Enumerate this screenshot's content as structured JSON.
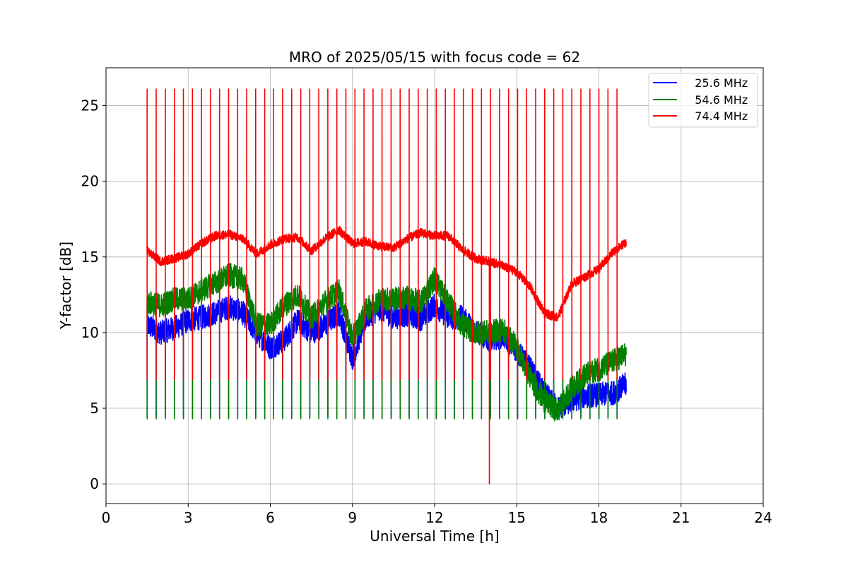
{
  "chart_data": {
    "type": "line",
    "title": "MRO of 2025/05/15 with focus code = 62",
    "xlabel": "Universal Time [h]",
    "ylabel": "Y-factor [dB]",
    "xlim": [
      0,
      24
    ],
    "ylim": [
      -1.3,
      27.5
    ],
    "xticks": [
      0,
      3,
      6,
      9,
      12,
      15,
      18,
      21,
      24
    ],
    "yticks": [
      0,
      5,
      10,
      15,
      20,
      25
    ],
    "grid": true,
    "legend_position": "top-right",
    "series": [
      {
        "name": "   25.6 MHz",
        "color": "#0000ff",
        "x": [
          1.5,
          2.0,
          2.5,
          3.0,
          3.5,
          4.0,
          4.5,
          5.0,
          5.5,
          6.0,
          6.5,
          7.0,
          7.5,
          8.0,
          8.5,
          9.0,
          9.5,
          10.0,
          10.5,
          11.0,
          11.5,
          12.0,
          12.5,
          13.0,
          13.5,
          14.0,
          14.5,
          15.0,
          15.5,
          16.0,
          16.5,
          17.0,
          17.5,
          18.0,
          18.5,
          19.0
        ],
        "baseline": [
          10.5,
          10.0,
          10.3,
          10.8,
          11.0,
          11.3,
          11.7,
          11.3,
          10.0,
          9.0,
          9.5,
          10.8,
          10.0,
          10.5,
          11.3,
          8.3,
          11.0,
          11.6,
          11.0,
          11.2,
          10.9,
          11.8,
          11.0,
          11.0,
          10.1,
          9.5,
          9.8,
          8.8,
          7.6,
          6.0,
          5.0,
          5.5,
          5.8,
          5.9,
          6.0,
          6.6
        ],
        "spike_period": 0.33,
        "spike_low": 4.4,
        "spike_high": 7.0
      },
      {
        "name": "   54.6 MHz",
        "color": "#008000",
        "x": [
          1.5,
          2.0,
          2.5,
          3.0,
          3.5,
          4.0,
          4.5,
          5.0,
          5.5,
          6.0,
          6.5,
          7.0,
          7.5,
          8.0,
          8.5,
          9.0,
          9.5,
          10.0,
          10.5,
          11.0,
          11.5,
          12.0,
          12.5,
          13.0,
          13.5,
          14.0,
          14.5,
          15.0,
          15.5,
          16.0,
          16.5,
          17.0,
          17.5,
          18.0,
          18.5,
          19.0
        ],
        "baseline": [
          12.0,
          11.8,
          12.2,
          12.2,
          12.8,
          13.3,
          13.8,
          13.5,
          10.5,
          10.5,
          11.8,
          12.5,
          11.0,
          12.0,
          12.8,
          9.6,
          11.5,
          12.2,
          12.2,
          12.3,
          12.0,
          13.6,
          12.0,
          10.5,
          10.0,
          10.0,
          10.2,
          9.0,
          7.0,
          5.5,
          4.8,
          6.3,
          7.2,
          7.6,
          8.1,
          8.6
        ],
        "spike_period": 0.33,
        "spike_low": 4.3,
        "spike_high": 7.0
      },
      {
        "name": "   74.4 MHz",
        "color": "#ff0000",
        "x": [
          1.5,
          2.0,
          2.5,
          3.0,
          3.5,
          4.0,
          4.5,
          5.0,
          5.5,
          6.0,
          6.5,
          7.0,
          7.5,
          8.0,
          8.5,
          9.0,
          9.5,
          10.0,
          10.5,
          11.0,
          11.5,
          12.0,
          12.5,
          13.0,
          13.5,
          14.0,
          14.5,
          15.0,
          15.5,
          16.0,
          16.5,
          17.0,
          17.5,
          18.0,
          18.5,
          19.0
        ],
        "baseline": [
          15.4,
          14.7,
          14.9,
          15.2,
          15.9,
          16.4,
          16.5,
          16.2,
          15.2,
          15.8,
          16.2,
          16.3,
          15.4,
          16.2,
          16.8,
          15.9,
          16.0,
          15.7,
          15.6,
          16.2,
          16.6,
          16.4,
          16.4,
          15.5,
          14.9,
          14.7,
          14.4,
          14.0,
          13.0,
          11.3,
          11.0,
          13.2,
          13.7,
          14.2,
          15.3,
          16.0
        ],
        "spike_period": 0.33,
        "spike_low": 6.9,
        "spike_high": 26.1,
        "dropout": {
          "x": 14.0,
          "y": 0
        }
      }
    ]
  }
}
